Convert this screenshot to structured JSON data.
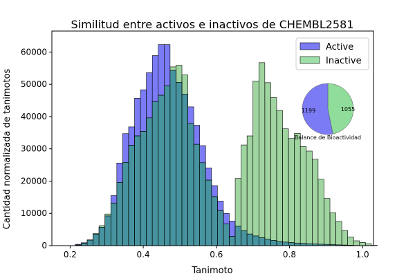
{
  "chart_data": {
    "type": "bar",
    "title": "Similitud entre activos e inactivos de CHEMBL2581",
    "xlabel": "Tanimoto",
    "ylabel": "Cantidad normalizada de tanimotos",
    "xlim": [
      0.15,
      1.03
    ],
    "ylim": [
      0,
      66500
    ],
    "xticks": [
      0.2,
      0.4,
      0.6,
      0.8,
      1.0
    ],
    "xtick_labels": [
      "0.2",
      "0.4",
      "0.6",
      "0.8",
      "1.0"
    ],
    "yticks": [
      0,
      10000,
      20000,
      30000,
      40000,
      50000,
      60000
    ],
    "ytick_labels": [
      "0",
      "10000",
      "20000",
      "30000",
      "40000",
      "50000",
      "60000"
    ],
    "grid": false,
    "legend_position": "top-right",
    "bin_width": 0.0162,
    "series": [
      {
        "name": "Active",
        "color": "#7b7bf5",
        "bin_start": 0.198,
        "values": [
          0,
          400,
          900,
          1800,
          3500,
          5700,
          9200,
          15500,
          25600,
          34700,
          36800,
          45700,
          48300,
          53600,
          58900,
          62300,
          62300,
          54300,
          50600,
          46900,
          43000,
          37300,
          31000,
          24100,
          18600,
          13800,
          10000,
          7600,
          6000,
          4600,
          3600,
          3000,
          2500,
          2000,
          1600,
          1300,
          1100,
          950,
          800,
          700,
          600,
          500,
          450,
          380,
          300,
          240,
          180,
          120,
          60,
          0
        ]
      },
      {
        "name": "Inactive",
        "color": "#8fdc9b",
        "bin_start": 0.198,
        "values": [
          0,
          200,
          700,
          1700,
          3800,
          6200,
          9800,
          13200,
          19600,
          25800,
          31100,
          34000,
          35400,
          39600,
          44600,
          46600,
          49500,
          55400,
          55900,
          52900,
          37900,
          31400,
          25700,
          20300,
          15200,
          10800,
          6700,
          2900,
          20800,
          31200,
          34000,
          51000,
          56700,
          50500,
          45900,
          41900,
          36200,
          33200,
          34800,
          30700,
          29300,
          26800,
          20600,
          14600,
          10200,
          7500,
          4700,
          2700,
          1500,
          1000,
          600,
          100
        ]
      }
    ],
    "inset_pie": {
      "title": "Balance de Bioactividad",
      "slices": [
        {
          "label": "1199",
          "value": 1199,
          "color": "#7b7bf5"
        },
        {
          "label": "1055",
          "value": 1055,
          "color": "#8fdc9b"
        }
      ]
    }
  }
}
